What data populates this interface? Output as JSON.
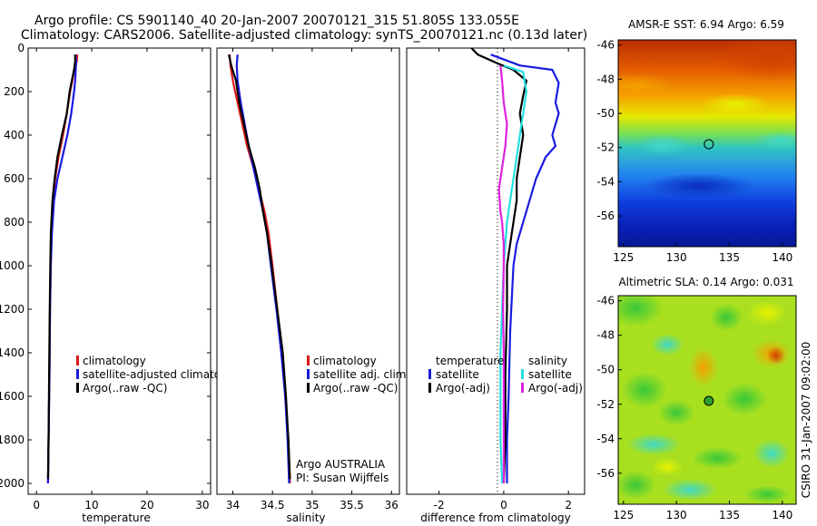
{
  "title": {
    "line1": "Argo profile: CS 5901140_40 20-Jan-2007 20070121_315 51.805S 133.055E",
    "line2": "Climatology: CARS2006. Satellite-adjusted climatology: synTS_20070121.nc (0.13d later)"
  },
  "side_label": "CSIRO 31-Jan-2007 09:02:00",
  "colors": {
    "red": "#dd1a1a",
    "blue": "#1a1ae0",
    "black": "#000000",
    "cyan": "#22e0e0",
    "magenta": "#dd22dd"
  },
  "chart_data": [
    {
      "type": "line",
      "id": "temperature",
      "xlabel": "temperature",
      "xlim": [
        -1.5,
        31.5
      ],
      "ylim": [
        2050,
        0
      ],
      "xticks": [
        "0",
        "10",
        "20",
        "30"
      ],
      "yticks": [
        "0",
        "200",
        "400",
        "600",
        "800",
        "1000",
        "1200",
        "1400",
        "1600",
        "1800",
        "2000"
      ],
      "legend": [
        "climatology",
        "satellite-adjusted climatology",
        "Argo(..raw -QC)"
      ],
      "series": [
        {
          "name": "climatology",
          "color": "red",
          "points": [
            [
              7.4,
              30
            ],
            [
              7.3,
              60
            ],
            [
              6.8,
              100
            ],
            [
              6.5,
              150
            ],
            [
              6.1,
              200
            ],
            [
              5.5,
              300
            ],
            [
              4.8,
              400
            ],
            [
              4.0,
              500
            ],
            [
              3.4,
              600
            ],
            [
              3.0,
              700
            ],
            [
              2.7,
              850
            ],
            [
              2.55,
              1000
            ],
            [
              2.45,
              1200
            ],
            [
              2.35,
              1500
            ],
            [
              2.2,
              1800
            ],
            [
              2.1,
              2000
            ]
          ]
        },
        {
          "name": "satellite-adjusted climatology",
          "color": "blue",
          "points": [
            [
              7.0,
              30
            ],
            [
              7.2,
              60
            ],
            [
              7.1,
              100
            ],
            [
              7.0,
              150
            ],
            [
              6.8,
              200
            ],
            [
              6.3,
              300
            ],
            [
              5.6,
              400
            ],
            [
              4.7,
              500
            ],
            [
              3.8,
              600
            ],
            [
              3.2,
              700
            ],
            [
              2.8,
              850
            ],
            [
              2.6,
              1000
            ],
            [
              2.45,
              1200
            ],
            [
              2.35,
              1500
            ],
            [
              2.2,
              1800
            ],
            [
              2.1,
              2000
            ]
          ]
        },
        {
          "name": "Argo(..raw -QC)",
          "color": "black",
          "points": [
            [
              7.0,
              30
            ],
            [
              7.0,
              60
            ],
            [
              6.8,
              100
            ],
            [
              6.4,
              150
            ],
            [
              6.0,
              200
            ],
            [
              5.5,
              300
            ],
            [
              4.6,
              400
            ],
            [
              3.8,
              500
            ],
            [
              3.3,
              600
            ],
            [
              2.9,
              700
            ],
            [
              2.6,
              850
            ],
            [
              2.5,
              1000
            ],
            [
              2.4,
              1200
            ],
            [
              2.3,
              1500
            ],
            [
              2.2,
              1800
            ],
            [
              2.1,
              1980
            ]
          ]
        }
      ]
    },
    {
      "type": "line",
      "id": "salinity",
      "xlabel": "salinity",
      "xlim": [
        33.8,
        36.1
      ],
      "ylim": [
        2050,
        0
      ],
      "xticks": [
        "34",
        "34.5",
        "35",
        "35.5",
        "36"
      ],
      "legend": [
        "climatology",
        "satellite adj. clim.",
        "Argo(..raw -QC)"
      ],
      "annotation": [
        "Argo AUSTRALIA",
        "PI: Susan Wijffels"
      ],
      "series": [
        {
          "name": "climatology",
          "color": "red",
          "points": [
            [
              33.96,
              30
            ],
            [
              33.97,
              80
            ],
            [
              34.0,
              150
            ],
            [
              34.06,
              250
            ],
            [
              34.12,
              350
            ],
            [
              34.18,
              450
            ],
            [
              34.26,
              550
            ],
            [
              34.33,
              650
            ],
            [
              34.4,
              750
            ],
            [
              34.45,
              850
            ],
            [
              34.5,
              1000
            ],
            [
              34.56,
              1200
            ],
            [
              34.62,
              1400
            ],
            [
              34.66,
              1600
            ],
            [
              34.7,
              1800
            ],
            [
              34.72,
              2000
            ]
          ]
        },
        {
          "name": "satellite adj. clim.",
          "color": "blue",
          "points": [
            [
              34.06,
              30
            ],
            [
              34.05,
              80
            ],
            [
              34.06,
              150
            ],
            [
              34.1,
              250
            ],
            [
              34.15,
              350
            ],
            [
              34.2,
              450
            ],
            [
              34.26,
              550
            ],
            [
              34.32,
              650
            ],
            [
              34.38,
              750
            ],
            [
              34.43,
              850
            ],
            [
              34.48,
              1000
            ],
            [
              34.55,
              1200
            ],
            [
              34.61,
              1400
            ],
            [
              34.66,
              1600
            ],
            [
              34.69,
              1800
            ],
            [
              34.71,
              2000
            ]
          ]
        },
        {
          "name": "Argo(..raw -QC)",
          "color": "black",
          "points": [
            [
              33.95,
              30
            ],
            [
              33.98,
              80
            ],
            [
              34.04,
              150
            ],
            [
              34.08,
              250
            ],
            [
              34.14,
              350
            ],
            [
              34.2,
              450
            ],
            [
              34.28,
              550
            ],
            [
              34.34,
              650
            ],
            [
              34.38,
              750
            ],
            [
              34.43,
              850
            ],
            [
              34.49,
              1000
            ],
            [
              34.56,
              1200
            ],
            [
              34.63,
              1400
            ],
            [
              34.67,
              1600
            ],
            [
              34.7,
              1800
            ],
            [
              34.72,
              1980
            ]
          ]
        }
      ]
    },
    {
      "type": "line",
      "id": "difference",
      "xlabel": "difference from climatology",
      "xlim": [
        -3.0,
        2.5
      ],
      "ylim": [
        2050,
        0
      ],
      "xticks": [
        "-2",
        "0",
        "2"
      ],
      "zero_line": true,
      "legend_groups": [
        {
          "title": "temperature",
          "entries": [
            "satellite",
            "Argo(-adj)"
          ]
        },
        {
          "title": "salinity",
          "entries": [
            "satellite",
            "Argo(-adj)"
          ]
        }
      ],
      "series": [
        {
          "name": "temperature satellite",
          "color": "blue",
          "points": [
            [
              -0.4,
              30
            ],
            [
              0.5,
              80
            ],
            [
              1.5,
              100
            ],
            [
              1.7,
              160
            ],
            [
              1.6,
              250
            ],
            [
              1.7,
              300
            ],
            [
              1.5,
              400
            ],
            [
              1.6,
              450
            ],
            [
              1.3,
              500
            ],
            [
              1.0,
              600
            ],
            [
              0.8,
              700
            ],
            [
              0.6,
              800
            ],
            [
              0.4,
              900
            ],
            [
              0.3,
              1000
            ],
            [
              0.2,
              1300
            ],
            [
              0.15,
              1600
            ],
            [
              0.1,
              1800
            ],
            [
              0.1,
              2000
            ]
          ]
        },
        {
          "name": "temperature Argo(-adj)",
          "color": "black",
          "points": [
            [
              -1.0,
              0
            ],
            [
              -0.8,
              30
            ],
            [
              -0.2,
              70
            ],
            [
              0.3,
              100
            ],
            [
              0.7,
              150
            ],
            [
              0.6,
              220
            ],
            [
              0.5,
              300
            ],
            [
              0.6,
              400
            ],
            [
              0.5,
              500
            ],
            [
              0.4,
              600
            ],
            [
              0.4,
              700
            ],
            [
              0.3,
              800
            ],
            [
              0.2,
              900
            ],
            [
              0.1,
              1000
            ],
            [
              0.1,
              1200
            ],
            [
              0.05,
              1500
            ],
            [
              0.05,
              1800
            ],
            [
              0.0,
              2000
            ]
          ]
        },
        {
          "name": "salinity satellite",
          "color": "cyan",
          "points": [
            [
              0.0,
              80
            ],
            [
              0.6,
              110
            ],
            [
              0.7,
              200
            ],
            [
              0.6,
              300
            ],
            [
              0.5,
              400
            ],
            [
              0.4,
              500
            ],
            [
              0.3,
              600
            ],
            [
              0.2,
              700
            ],
            [
              0.1,
              800
            ],
            [
              0.05,
              900
            ],
            [
              0.0,
              1000
            ],
            [
              -0.05,
              1200
            ],
            [
              -0.1,
              1400
            ],
            [
              -0.1,
              1600
            ],
            [
              -0.1,
              1800
            ],
            [
              -0.05,
              2000
            ]
          ]
        },
        {
          "name": "salinity Argo(-adj)",
          "color": "magenta",
          "points": [
            [
              -0.1,
              80
            ],
            [
              -0.05,
              150
            ],
            [
              0.0,
              250
            ],
            [
              0.1,
              350
            ],
            [
              0.05,
              450
            ],
            [
              -0.05,
              550
            ],
            [
              -0.15,
              650
            ],
            [
              -0.1,
              750
            ],
            [
              -0.05,
              800
            ],
            [
              0.0,
              900
            ],
            [
              0.0,
              1000
            ],
            [
              -0.02,
              1200
            ],
            [
              0.0,
              1400
            ],
            [
              0.0,
              1600
            ],
            [
              0.0,
              1800
            ],
            [
              0.0,
              2000
            ]
          ]
        }
      ]
    },
    {
      "type": "heatmap",
      "id": "sst",
      "title": "AMSR-E SST: 6.94  Argo: 6.59",
      "xlim": [
        124.5,
        141.3
      ],
      "ylim": [
        -57.8,
        -45.7
      ],
      "xticks": [
        "125",
        "130",
        "135",
        "140"
      ],
      "yticks": [
        "-46",
        "-48",
        "-50",
        "-52",
        "-54",
        "-56"
      ],
      "marker": {
        "lon": 133.055,
        "lat": -51.805,
        "filled": false
      }
    },
    {
      "type": "heatmap",
      "id": "sla",
      "title": "Altimetric SLA: 0.14  Argo: 0.031",
      "xlim": [
        124.5,
        141.3
      ],
      "ylim": [
        -57.8,
        -45.7
      ],
      "xticks": [
        "125",
        "130",
        "135",
        "140"
      ],
      "yticks": [
        "-46",
        "-48",
        "-50",
        "-52",
        "-54",
        "-56"
      ],
      "marker": {
        "lon": 133.055,
        "lat": -51.805,
        "filled": true
      }
    }
  ]
}
